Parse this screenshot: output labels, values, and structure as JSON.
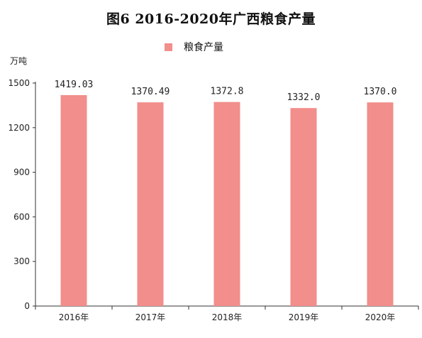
{
  "chart_data": {
    "type": "bar",
    "title": "图6 2016-2020年广西粮食产量",
    "ylabel": "万吨",
    "xlabel": "",
    "categories": [
      "2016年",
      "2017年",
      "2018年",
      "2019年",
      "2020年"
    ],
    "series": [
      {
        "name": "粮食产量",
        "values": [
          1419.03,
          1370.49,
          1372.8,
          1332.0,
          1370.0
        ],
        "labels": [
          "1419.03",
          "1370.49",
          "1372.8",
          "1332.0",
          "1370.0"
        ],
        "color": "#f28e8b"
      }
    ],
    "ylim": [
      0,
      1500
    ],
    "yticks": [
      0,
      300,
      600,
      900,
      1200,
      1500
    ],
    "ytick_labels": [
      "0",
      "300",
      "600",
      "900",
      "1200",
      "1500"
    ],
    "grid": false,
    "legend_position": "top-center"
  }
}
